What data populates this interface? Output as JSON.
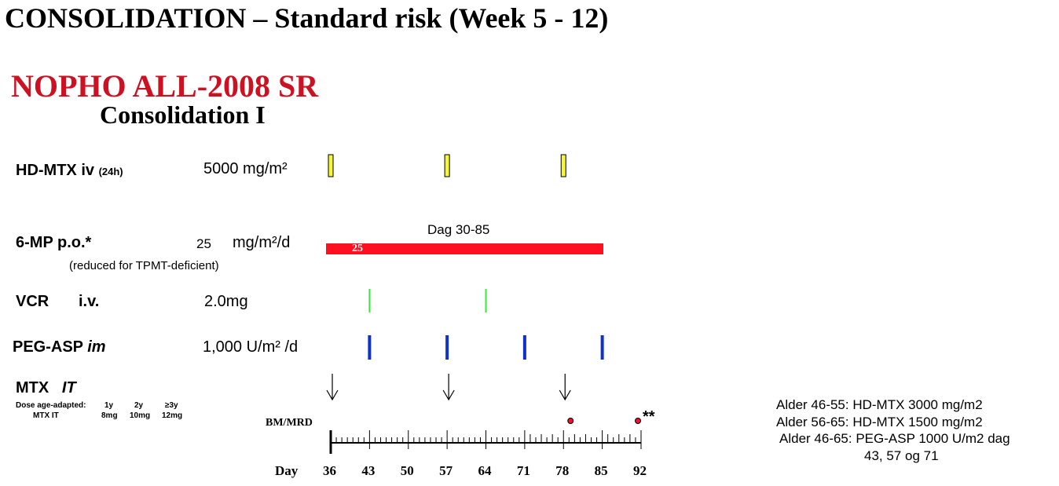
{
  "title": "CONSOLIDATION – Standard risk (Week 5 - 12)",
  "protocol": "NOPHO ALL-2008 SR",
  "subtitle": "Consolidation I",
  "colors": {
    "protocol": "#cc1122",
    "mp_bar": "#ff1020",
    "mtx_box": "#f5f53a",
    "vcr": "#33ee33",
    "peg": "#1030cc",
    "dot": "#ee1133"
  },
  "drugs": [
    {
      "name": "HD-MTX iv",
      "note": "(24h)",
      "dose": "5000 mg/m²",
      "days": [
        36,
        57,
        78
      ]
    },
    {
      "name": "6-MP p.o.*",
      "note": "(reduced for TPMT-deficient)",
      "dose_num": "25",
      "dose_unit": "mg/m²/d",
      "bar_label": "25",
      "range_label": "Dag 30-85",
      "range": [
        36,
        85
      ]
    },
    {
      "name": "VCR",
      "route": "i.v.",
      "dose": "2.0mg",
      "days": [
        43,
        64
      ]
    },
    {
      "name": "PEG-ASP",
      "route": "im",
      "dose": "1,000 U/m² /d",
      "days": [
        43,
        57,
        71,
        85
      ]
    },
    {
      "name": "MTX",
      "route": "IT",
      "days": [
        36,
        57,
        78
      ]
    }
  ],
  "mtx_it_table": {
    "row1": [
      "Dose age-adapted:",
      "1y",
      "2y",
      "≥3y"
    ],
    "row2": [
      "MTX IT",
      "8mg",
      "10mg",
      "12mg"
    ]
  },
  "bm_mrd": {
    "label": "BM/MRD",
    "days": [
      78,
      92
    ],
    "mark": "**"
  },
  "axis": {
    "label": "Day",
    "ticks": [
      36,
      43,
      50,
      57,
      64,
      71,
      78,
      85,
      92
    ]
  },
  "notes": [
    "Alder 46-55: HD-MTX 3000 mg/m2",
    "Alder 56-65: HD-MTX 1500 mg/m2",
    "Alder 46-65: PEG-ASP 1000 U/m2 dag",
    "43, 57 og 71"
  ]
}
